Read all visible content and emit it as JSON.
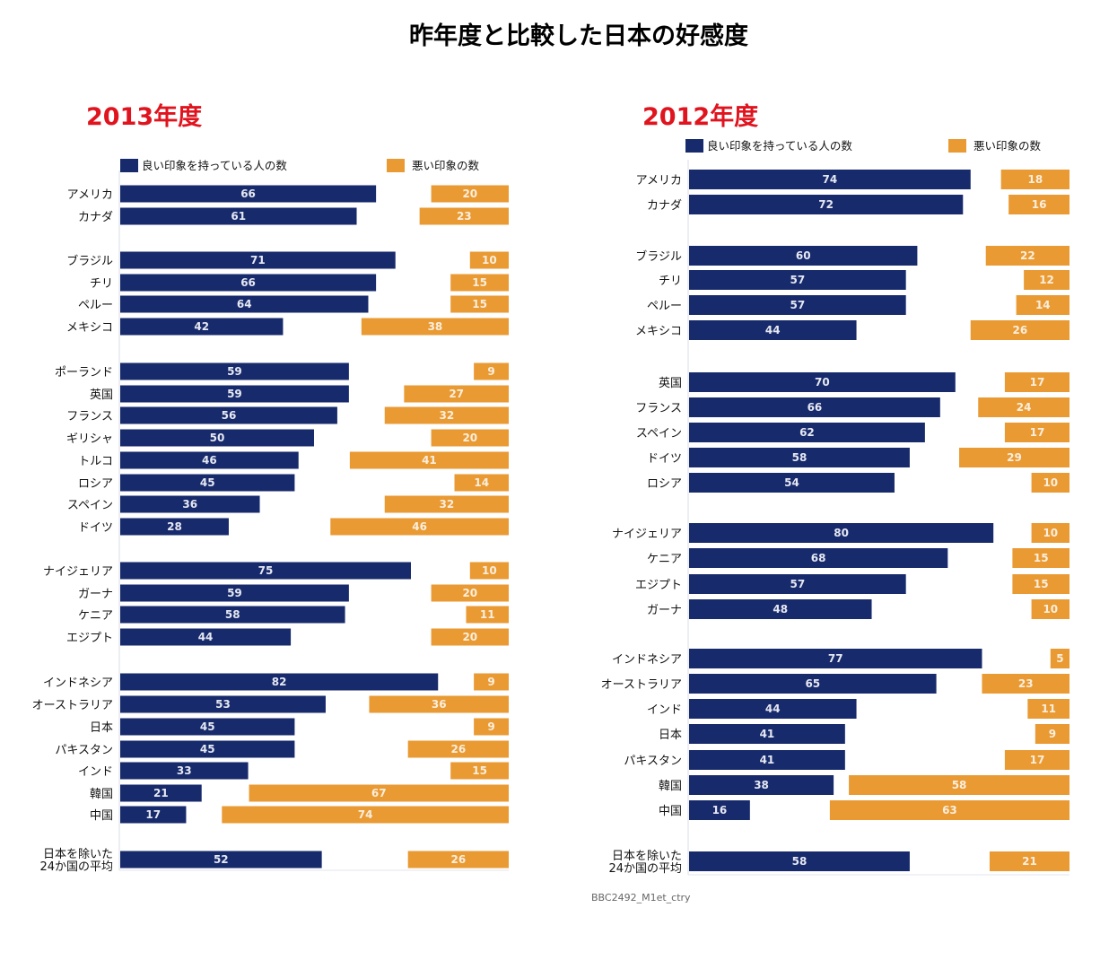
{
  "title": "昨年度と比較した日本の好感度",
  "colors": {
    "positive": "#172a6b",
    "negative": "#e99a33",
    "year": "#e0141e"
  },
  "source": "BBC2492_M1et_ctry",
  "chart_data": [
    {
      "type": "bar",
      "orientation": "horizontal-diverging",
      "title": "2013年度",
      "legend": [
        "良い印象を持っている人の数",
        "悪い印象の数"
      ],
      "legend_position": "top",
      "xlim": [
        0,
        100
      ],
      "groups": [
        [
          "アメリカ",
          "カナダ"
        ],
        [
          "ブラジル",
          "チリ",
          "ペルー",
          "メキシコ"
        ],
        [
          "ポーランド",
          "英国",
          "フランス",
          "ギリシャ",
          "トルコ",
          "ロシア",
          "スペイン",
          "ドイツ"
        ],
        [
          "ナイジェリア",
          "ガーナ",
          "ケニア",
          "エジプト"
        ],
        [
          "インドネシア",
          "オーストラリア",
          "日本",
          "パキスタン",
          "インド",
          "韓国",
          "中国"
        ],
        [
          "日本を除いた\n24か国の平均"
        ]
      ],
      "categories": [
        "アメリカ",
        "カナダ",
        "ブラジル",
        "チリ",
        "ペルー",
        "メキシコ",
        "ポーランド",
        "英国",
        "フランス",
        "ギリシャ",
        "トルコ",
        "ロシア",
        "スペイン",
        "ドイツ",
        "ナイジェリア",
        "ガーナ",
        "ケニア",
        "エジプト",
        "インドネシア",
        "オーストラリア",
        "日本",
        "パキスタン",
        "インド",
        "韓国",
        "中国",
        "日本を除いた\n24か国の平均"
      ],
      "series": [
        {
          "name": "良い印象を持っている人の数",
          "values": [
            66,
            61,
            71,
            66,
            64,
            42,
            59,
            59,
            56,
            50,
            46,
            45,
            36,
            28,
            75,
            59,
            58,
            44,
            82,
            53,
            45,
            45,
            33,
            21,
            17,
            52
          ]
        },
        {
          "name": "悪い印象の数",
          "values": [
            20,
            23,
            10,
            15,
            15,
            38,
            9,
            27,
            32,
            20,
            41,
            14,
            32,
            46,
            10,
            20,
            11,
            20,
            9,
            36,
            9,
            26,
            15,
            67,
            74,
            26
          ]
        }
      ]
    },
    {
      "type": "bar",
      "orientation": "horizontal-diverging",
      "title": "2012年度",
      "legend": [
        "良い印象を持っている人の数",
        "悪い印象の数"
      ],
      "legend_position": "top",
      "xlim": [
        0,
        100
      ],
      "groups": [
        [
          "アメリカ",
          "カナダ"
        ],
        [
          "ブラジル",
          "チリ",
          "ペルー",
          "メキシコ"
        ],
        [
          "英国",
          "フランス",
          "スペイン",
          "ドイツ",
          "ロシア"
        ],
        [
          "ナイジェリア",
          "ケニア",
          "エジプト",
          "ガーナ"
        ],
        [
          "インドネシア",
          "オーストラリア",
          "インド",
          "日本",
          "パキスタン",
          "韓国",
          "中国"
        ],
        [
          "日本を除いた\n24か国の平均"
        ]
      ],
      "categories": [
        "アメリカ",
        "カナダ",
        "ブラジル",
        "チリ",
        "ペルー",
        "メキシコ",
        "英国",
        "フランス",
        "スペイン",
        "ドイツ",
        "ロシア",
        "ナイジェリア",
        "ケニア",
        "エジプト",
        "ガーナ",
        "インドネシア",
        "オーストラリア",
        "インド",
        "日本",
        "パキスタン",
        "韓国",
        "中国",
        "日本を除いた\n24か国の平均"
      ],
      "series": [
        {
          "name": "良い印象を持っている人の数",
          "values": [
            74,
            72,
            60,
            57,
            57,
            44,
            70,
            66,
            62,
            58,
            54,
            80,
            68,
            57,
            48,
            77,
            65,
            44,
            41,
            41,
            38,
            16,
            58
          ]
        },
        {
          "name": "悪い印象の数",
          "values": [
            18,
            16,
            22,
            12,
            14,
            26,
            17,
            24,
            17,
            29,
            10,
            10,
            15,
            15,
            10,
            5,
            23,
            11,
            9,
            17,
            58,
            63,
            21
          ]
        }
      ]
    }
  ]
}
